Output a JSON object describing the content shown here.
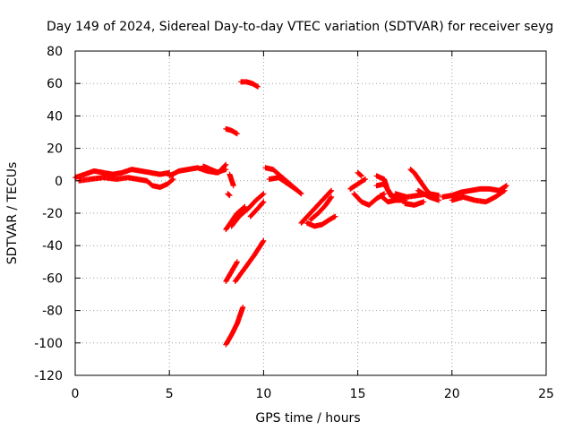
{
  "chart_data": {
    "type": "scatter",
    "title": "Day 149 of 2024, Sidereal Day-to-day VTEC variation (SDTVAR) for receiver seyg",
    "xlabel": "GPS time / hours",
    "ylabel": "SDTVAR / TECUs",
    "xlim": [
      0,
      25
    ],
    "ylim": [
      -120,
      80
    ],
    "xticks": [
      0,
      5,
      10,
      15,
      20,
      25
    ],
    "yticks": [
      -120,
      -100,
      -80,
      -60,
      -40,
      -20,
      0,
      20,
      40,
      60,
      80
    ],
    "grid": true,
    "series": [
      {
        "name": "SDTVAR",
        "color": "#ff0000",
        "marker": "plus",
        "tracks": [
          [
            [
              0.0,
              2
            ],
            [
              0.5,
              4
            ],
            [
              1.0,
              6
            ],
            [
              1.5,
              5
            ],
            [
              2.0,
              4
            ],
            [
              2.5,
              5
            ],
            [
              3.0,
              7
            ],
            [
              3.5,
              6
            ],
            [
              4.0,
              5
            ],
            [
              4.5,
              4
            ],
            [
              5.0,
              5
            ]
          ],
          [
            [
              0.2,
              0
            ],
            [
              0.8,
              1
            ],
            [
              1.5,
              2
            ],
            [
              2.2,
              1
            ],
            [
              2.8,
              2
            ],
            [
              3.3,
              1
            ],
            [
              3.8,
              0
            ]
          ],
          [
            [
              3.8,
              0
            ],
            [
              4.1,
              -3
            ],
            [
              4.5,
              -4
            ],
            [
              4.9,
              -2
            ],
            [
              5.2,
              1
            ]
          ],
          [
            [
              5.0,
              3
            ],
            [
              5.5,
              6
            ],
            [
              6.0,
              7
            ],
            [
              6.5,
              8
            ],
            [
              7.0,
              6
            ],
            [
              7.5,
              5
            ],
            [
              8.0,
              7
            ]
          ],
          [
            [
              6.8,
              9
            ],
            [
              7.2,
              7
            ],
            [
              7.6,
              5
            ],
            [
              8.0,
              10
            ]
          ],
          [
            [
              8.2,
              4
            ],
            [
              8.4,
              -3
            ]
          ],
          [
            [
              8.1,
              -8
            ],
            [
              8.2,
              -9
            ]
          ],
          [
            [
              8.0,
              32
            ],
            [
              8.3,
              31
            ],
            [
              8.6,
              29
            ]
          ],
          [
            [
              8.8,
              61
            ],
            [
              9.1,
              61
            ],
            [
              9.4,
              60
            ],
            [
              9.7,
              58
            ]
          ],
          [
            [
              8.0,
              -30
            ],
            [
              8.3,
              -25
            ],
            [
              8.6,
              -20
            ],
            [
              9.0,
              -16
            ]
          ],
          [
            [
              8.3,
              -28
            ],
            [
              8.7,
              -22
            ],
            [
              9.2,
              -17
            ],
            [
              9.6,
              -12
            ],
            [
              10.0,
              -8
            ]
          ],
          [
            [
              9.3,
              -22
            ],
            [
              9.7,
              -17
            ],
            [
              10.0,
              -13
            ]
          ],
          [
            [
              8.0,
              -62
            ],
            [
              8.3,
              -56
            ],
            [
              8.6,
              -50
            ]
          ],
          [
            [
              8.5,
              -62
            ],
            [
              9.0,
              -54
            ],
            [
              9.5,
              -46
            ],
            [
              10.0,
              -37
            ]
          ],
          [
            [
              8.0,
              -101
            ],
            [
              8.3,
              -95
            ],
            [
              8.6,
              -88
            ],
            [
              8.9,
              -78
            ]
          ],
          [
            [
              10.1,
              8
            ],
            [
              10.5,
              7
            ],
            [
              10.9,
              3
            ],
            [
              11.3,
              -1
            ],
            [
              11.7,
              -5
            ],
            [
              12.0,
              -8
            ]
          ],
          [
            [
              10.3,
              1
            ],
            [
              10.8,
              2
            ],
            [
              11.3,
              -2
            ],
            [
              11.8,
              -6
            ]
          ],
          [
            [
              12.0,
              -26
            ],
            [
              12.4,
              -21
            ],
            [
              12.8,
              -16
            ],
            [
              13.2,
              -11
            ],
            [
              13.6,
              -6
            ]
          ],
          [
            [
              12.3,
              -26
            ],
            [
              12.7,
              -28
            ],
            [
              13.1,
              -27
            ],
            [
              13.5,
              -24
            ],
            [
              13.8,
              -22
            ]
          ],
          [
            [
              12.5,
              -24
            ],
            [
              12.9,
              -20
            ],
            [
              13.3,
              -15
            ],
            [
              13.6,
              -10
            ]
          ],
          [
            [
              14.8,
              -8
            ],
            [
              15.2,
              -13
            ],
            [
              15.6,
              -15
            ],
            [
              16.0,
              -11
            ],
            [
              16.4,
              -8
            ]
          ],
          [
            [
              15.0,
              5
            ],
            [
              15.2,
              3
            ]
          ],
          [
            [
              14.6,
              -5
            ],
            [
              15.0,
              -2
            ],
            [
              15.4,
              1
            ]
          ],
          [
            [
              16.0,
              -3
            ],
            [
              16.4,
              -2
            ],
            [
              16.8,
              -9
            ],
            [
              17.1,
              -11
            ],
            [
              17.5,
              -12
            ]
          ],
          [
            [
              16.0,
              3
            ],
            [
              16.4,
              1
            ],
            [
              16.6,
              -6
            ],
            [
              16.8,
              -10
            ]
          ],
          [
            [
              16.2,
              -9
            ],
            [
              16.6,
              -13
            ],
            [
              17.0,
              -12
            ],
            [
              17.5,
              -12
            ]
          ],
          [
            [
              17.5,
              -14
            ],
            [
              18.0,
              -15
            ],
            [
              18.5,
              -13
            ]
          ],
          [
            [
              17.8,
              7
            ],
            [
              18.0,
              5
            ],
            [
              18.3,
              0
            ],
            [
              18.6,
              -5
            ],
            [
              18.9,
              -9
            ]
          ],
          [
            [
              17.0,
              -8
            ],
            [
              17.6,
              -10
            ],
            [
              18.2,
              -9
            ],
            [
              18.8,
              -8
            ],
            [
              19.3,
              -9
            ]
          ],
          [
            [
              18.2,
              -6
            ],
            [
              18.8,
              -10
            ],
            [
              19.3,
              -12
            ]
          ],
          [
            [
              19.5,
              -10
            ],
            [
              20.0,
              -9
            ],
            [
              20.5,
              -7
            ],
            [
              21.0,
              -6
            ],
            [
              21.5,
              -5
            ],
            [
              22.0,
              -5
            ],
            [
              22.5,
              -6
            ],
            [
              22.9,
              -3
            ]
          ],
          [
            [
              20.0,
              -12
            ],
            [
              20.6,
              -10
            ],
            [
              21.2,
              -12
            ],
            [
              21.8,
              -13
            ],
            [
              22.3,
              -10
            ],
            [
              22.8,
              -6
            ]
          ]
        ]
      }
    ]
  }
}
